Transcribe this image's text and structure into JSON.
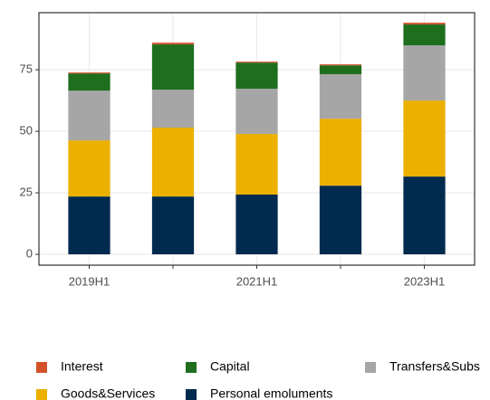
{
  "chart_data": {
    "type": "bar",
    "stacked": true,
    "categories": [
      "2019H1",
      null,
      "2021H1",
      null,
      "2023H1"
    ],
    "series": [
      {
        "name": "Personal emoluments",
        "color": "#002a4e",
        "values": [
          23.5,
          23.5,
          24.3,
          27.9,
          31.6
        ]
      },
      {
        "name": "Goods&Services",
        "color": "#ebb000",
        "values": [
          22.8,
          28.0,
          24.6,
          27.2,
          30.9
        ]
      },
      {
        "name": "Transfers&Subs",
        "color": "#a6a6a6",
        "values": [
          20.2,
          15.4,
          18.4,
          18.1,
          22.4
        ]
      },
      {
        "name": "Capital",
        "color": "#1e6e1e",
        "values": [
          7.0,
          18.4,
          10.6,
          3.6,
          8.5
        ]
      },
      {
        "name": "Interest",
        "color": "#d4512a",
        "values": [
          0.4,
          0.7,
          0.4,
          0.4,
          0.7
        ]
      }
    ],
    "ylim": [
      -4.4,
      98.2
    ],
    "yticks": [
      0,
      25,
      50,
      75
    ],
    "grid": true,
    "legend": "bottom"
  }
}
